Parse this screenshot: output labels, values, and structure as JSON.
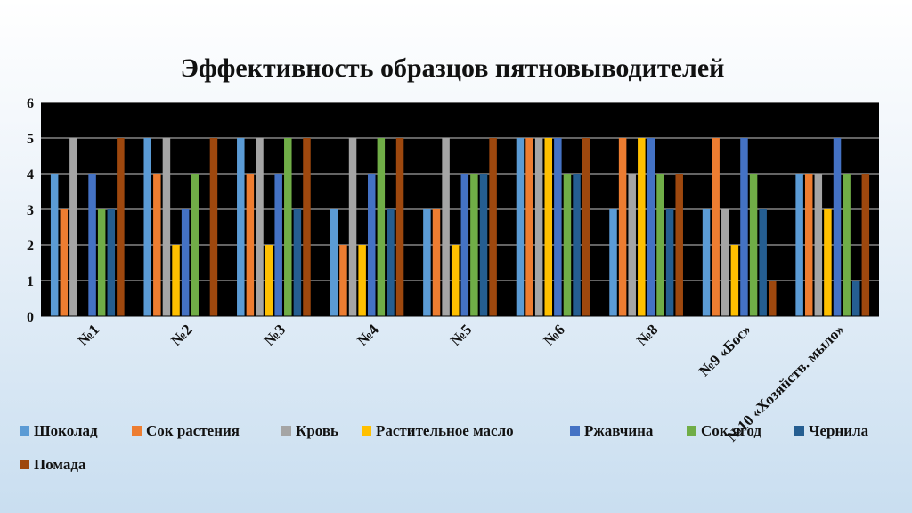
{
  "chart_data": {
    "type": "bar",
    "title": "Эффективность образцов пятновыводителей",
    "xlabel": "",
    "ylabel": "",
    "ylim": [
      0,
      6
    ],
    "yticks": [
      "0",
      "1",
      "2",
      "3",
      "4",
      "5",
      "6"
    ],
    "grid": true,
    "legend_position": "bottom",
    "plot_background": "#000000",
    "categories": [
      "№1",
      "№2",
      "№3",
      "№4",
      "№5",
      "№6",
      "№8",
      "№9 «Бос»",
      "№10 «Хозяйств. мыло»"
    ],
    "series": [
      {
        "name": "Шоколад",
        "color": "#5b9bd5",
        "values": [
          4,
          5,
          5,
          3,
          3,
          5,
          3,
          3,
          4
        ]
      },
      {
        "name": "Сок растения",
        "color": "#ed7d31",
        "values": [
          3,
          4,
          4,
          2,
          3,
          5,
          5,
          5,
          4
        ]
      },
      {
        "name": "Кровь",
        "color": "#a5a5a5",
        "values": [
          5,
          5,
          5,
          5,
          5,
          5,
          4,
          3,
          4
        ]
      },
      {
        "name": "Растительное масло",
        "color": "#ffc000",
        "values": [
          0,
          2,
          2,
          2,
          2,
          5,
          5,
          2,
          3
        ]
      },
      {
        "name": "Ржавчина",
        "color": "#4472c4",
        "values": [
          4,
          3,
          4,
          4,
          4,
          5,
          5,
          5,
          5
        ]
      },
      {
        "name": "Сок ягод",
        "color": "#70ad47",
        "values": [
          3,
          4,
          5,
          5,
          4,
          4,
          4,
          4,
          4
        ]
      },
      {
        "name": "Чернила",
        "color": "#255e91",
        "values": [
          3,
          0,
          3,
          3,
          4,
          4,
          3,
          3,
          1
        ]
      },
      {
        "name": "Помада",
        "color": "#9e480e",
        "values": [
          5,
          5,
          5,
          5,
          5,
          5,
          4,
          1,
          4
        ]
      }
    ]
  }
}
